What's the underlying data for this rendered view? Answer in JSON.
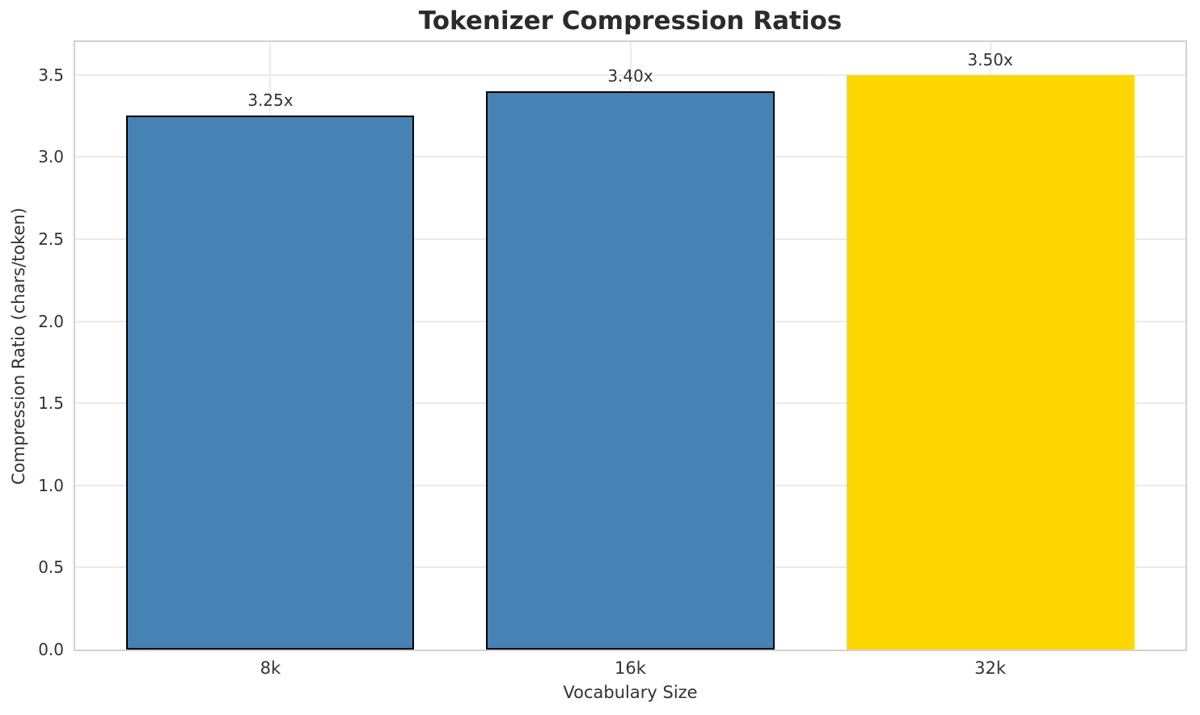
{
  "chart_data": {
    "type": "bar",
    "title": "Tokenizer Compression Ratios",
    "xlabel": "Vocabulary Size",
    "ylabel": "Compression Ratio (chars/token)",
    "categories": [
      "8k",
      "16k",
      "32k"
    ],
    "values": [
      3.25,
      3.4,
      3.5
    ],
    "bar_labels": [
      "3.25x",
      "3.40x",
      "3.50x"
    ],
    "bar_colors": [
      "#4682B4",
      "#4682B4",
      "#FFD700"
    ],
    "bar_edge_colors": [
      "#000000",
      "#000000",
      "none"
    ],
    "ylim": [
      0,
      3.7
    ],
    "yticks": [
      0.0,
      0.5,
      1.0,
      1.5,
      2.0,
      2.5,
      3.0,
      3.5
    ],
    "ytick_labels": [
      "0.0",
      "0.5",
      "1.0",
      "1.5",
      "2.0",
      "2.5",
      "3.0",
      "3.5"
    ],
    "grid": true,
    "legend": "none",
    "colors": {
      "grid": "#ebebeb",
      "spine": "#d2d2d2",
      "tick_text": "#333333",
      "title_text": "#2b2b2b",
      "bar_edge": "#000000"
    }
  }
}
